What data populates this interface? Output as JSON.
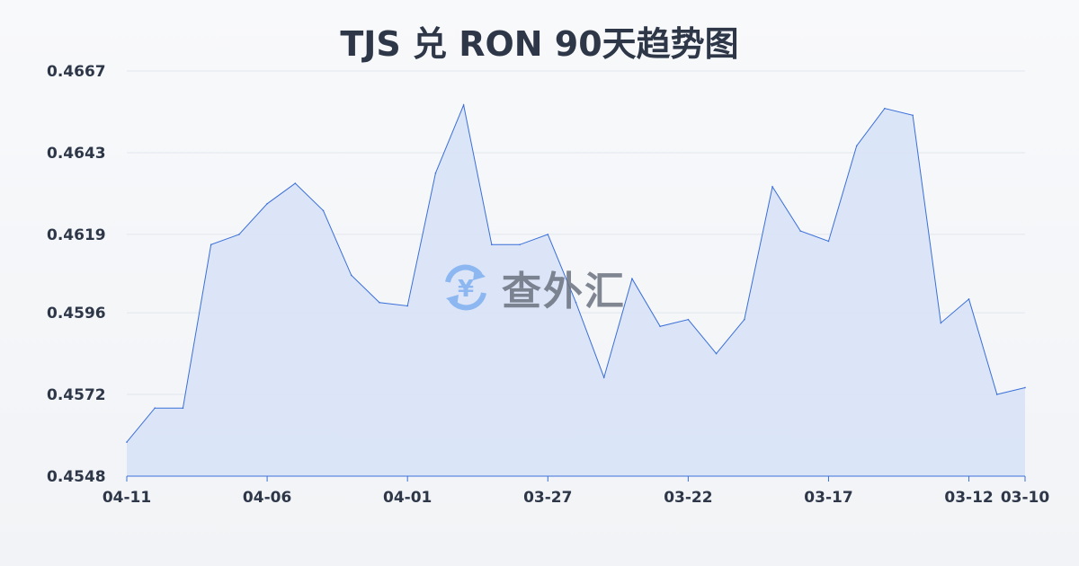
{
  "chart_data": {
    "type": "area",
    "title": "TJS 兑 RON 90天趋势图",
    "xlabel": "",
    "ylabel": "",
    "ylim": [
      0.4548,
      0.4667
    ],
    "y_ticks": [
      "0.4548",
      "0.4572",
      "0.4596",
      "0.4619",
      "0.4643",
      "0.4667"
    ],
    "x_tick_labels": [
      "04-11",
      "04-06",
      "04-01",
      "03-27",
      "03-22",
      "03-17",
      "03-12",
      "03-10"
    ],
    "grid": true,
    "colors": {
      "line": "#3a6fd8",
      "fill": "#d6e2f7"
    },
    "x": [
      "04-11",
      "04-10",
      "04-09",
      "04-08",
      "04-07",
      "04-06",
      "04-05",
      "04-04",
      "04-03",
      "04-02",
      "04-01",
      "03-31",
      "03-30",
      "03-29",
      "03-28",
      "03-27",
      "03-26",
      "03-25",
      "03-24",
      "03-23",
      "03-22",
      "03-21",
      "03-20",
      "03-19",
      "03-18",
      "03-17",
      "03-16",
      "03-15",
      "03-14",
      "03-13",
      "03-12",
      "03-11",
      "03-10"
    ],
    "values": [
      0.4558,
      0.4568,
      0.4568,
      0.4616,
      0.4619,
      0.4628,
      0.4634,
      0.4626,
      0.4607,
      0.4599,
      0.4598,
      0.4637,
      0.4657,
      0.4616,
      0.4616,
      0.4619,
      0.4599,
      0.4577,
      0.4606,
      0.4592,
      0.4594,
      0.4584,
      0.4594,
      0.4633,
      0.462,
      0.4617,
      0.4645,
      0.4656,
      0.4654,
      0.4593,
      0.46,
      0.4572,
      0.4574
    ]
  },
  "watermark": {
    "text": "查外汇",
    "icon": "yen-exchange-icon"
  }
}
